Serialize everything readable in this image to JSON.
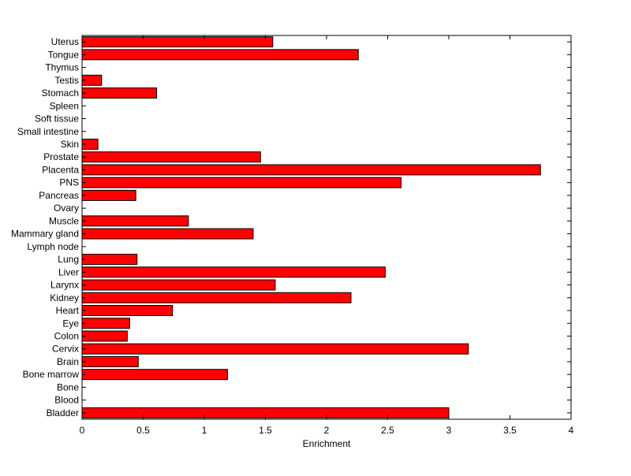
{
  "chart_data": {
    "type": "bar",
    "orientation": "horizontal",
    "categories": [
      "Bladder",
      "Blood",
      "Bone",
      "Bone marrow",
      "Brain",
      "Cervix",
      "Colon",
      "Eye",
      "Heart",
      "Kidney",
      "Larynx",
      "Liver",
      "Lung",
      "Lymph node",
      "Mammary gland",
      "Muscle",
      "Ovary",
      "Pancreas",
      "PNS",
      "Placenta",
      "Prostate",
      "Skin",
      "Small intestine",
      "Soft tissue",
      "Spleen",
      "Stomach",
      "Testis",
      "Thymus",
      "Tongue",
      "Uterus"
    ],
    "values": [
      3.0,
      0,
      0,
      1.19,
      0.46,
      3.16,
      0.37,
      0.39,
      0.74,
      2.2,
      1.58,
      2.48,
      0.45,
      0,
      1.4,
      0.87,
      0,
      0.44,
      2.61,
      3.75,
      1.46,
      0.13,
      0,
      0,
      0,
      0.61,
      0.16,
      0,
      2.26,
      1.56
    ],
    "xlabel": "Enrichment",
    "ylabel": "",
    "title": "",
    "xlim": [
      0,
      4
    ],
    "xticks": [
      0,
      0.5,
      1,
      1.5,
      2,
      2.5,
      3,
      3.5,
      4
    ],
    "xtick_labels": [
      "0",
      "0.5",
      "1",
      "1.5",
      "2",
      "2.5",
      "3",
      "3.5",
      "4"
    ],
    "bar_color": "#ff0000",
    "edge_color": "#000000",
    "grid": false,
    "legend": "none"
  }
}
